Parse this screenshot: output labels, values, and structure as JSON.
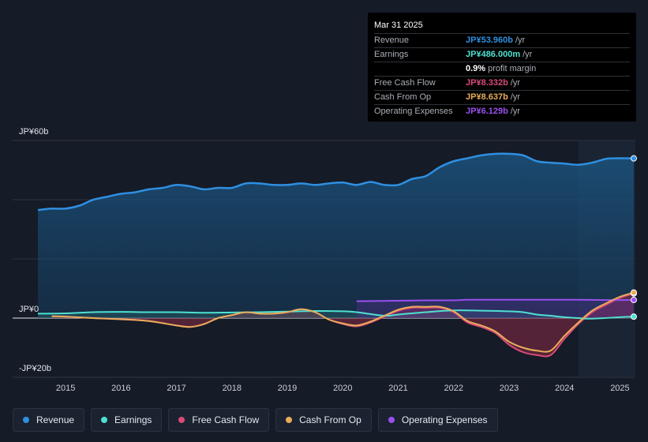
{
  "chart_data": {
    "type": "area",
    "y_labels": {
      "top": "JP¥60b",
      "zero": "JP¥0",
      "bottom": "-JP¥20b"
    },
    "ylim": [
      -20,
      60
    ],
    "xlim": [
      2014.5,
      2025.25
    ],
    "x_ticks": [
      "2015",
      "2016",
      "2017",
      "2018",
      "2019",
      "2020",
      "2021",
      "2022",
      "2023",
      "2024",
      "2025"
    ],
    "forecast_start": 2024.25,
    "series": [
      {
        "name": "Revenue",
        "color": "#2f8fe0",
        "fill": true,
        "points": [
          [
            2014.5,
            36.5
          ],
          [
            2014.75,
            37
          ],
          [
            2015,
            37
          ],
          [
            2015.25,
            38
          ],
          [
            2015.5,
            40
          ],
          [
            2015.75,
            41
          ],
          [
            2016,
            42
          ],
          [
            2016.25,
            42.5
          ],
          [
            2016.5,
            43.5
          ],
          [
            2016.75,
            44
          ],
          [
            2017,
            45
          ],
          [
            2017.25,
            44.5
          ],
          [
            2017.5,
            43.5
          ],
          [
            2017.75,
            44
          ],
          [
            2018,
            44
          ],
          [
            2018.25,
            45.5
          ],
          [
            2018.5,
            45.5
          ],
          [
            2018.75,
            45
          ],
          [
            2019,
            45
          ],
          [
            2019.25,
            45.5
          ],
          [
            2019.5,
            45
          ],
          [
            2019.75,
            45.5
          ],
          [
            2020,
            45.8
          ],
          [
            2020.25,
            45
          ],
          [
            2020.5,
            46
          ],
          [
            2020.75,
            45
          ],
          [
            2021,
            45
          ],
          [
            2021.25,
            47
          ],
          [
            2021.5,
            48
          ],
          [
            2021.75,
            51
          ],
          [
            2022,
            53
          ],
          [
            2022.25,
            54
          ],
          [
            2022.5,
            55
          ],
          [
            2022.75,
            55.5
          ],
          [
            2023,
            55.5
          ],
          [
            2023.25,
            55
          ],
          [
            2023.5,
            53
          ],
          [
            2023.75,
            52.5
          ],
          [
            2024,
            52.2
          ],
          [
            2024.25,
            51.8
          ],
          [
            2024.5,
            52.5
          ],
          [
            2024.75,
            53.8
          ],
          [
            2025,
            54
          ],
          [
            2025.25,
            53.96
          ]
        ]
      },
      {
        "name": "Earnings",
        "color": "#4fe0d0",
        "fill": true,
        "points": [
          [
            2014.5,
            1.5
          ],
          [
            2015,
            1.6
          ],
          [
            2015.5,
            2
          ],
          [
            2016,
            2.1
          ],
          [
            2016.5,
            2
          ],
          [
            2017,
            2
          ],
          [
            2017.5,
            1.8
          ],
          [
            2018,
            1.9
          ],
          [
            2018.5,
            2
          ],
          [
            2019,
            2.2
          ],
          [
            2019.5,
            2.4
          ],
          [
            2020,
            2.3
          ],
          [
            2020.25,
            2
          ],
          [
            2020.75,
            0.8
          ],
          [
            2021,
            1.2
          ],
          [
            2021.5,
            2
          ],
          [
            2022,
            2.6
          ],
          [
            2022.5,
            2.5
          ],
          [
            2023,
            2.3
          ],
          [
            2023.25,
            2
          ],
          [
            2023.5,
            1.2
          ],
          [
            2023.75,
            0.8
          ],
          [
            2024,
            0.3
          ],
          [
            2024.25,
            0
          ],
          [
            2024.5,
            -0.2
          ],
          [
            2025,
            0.3
          ],
          [
            2025.25,
            0.486
          ]
        ]
      },
      {
        "name": "Free Cash Flow",
        "color": "#d94a7a",
        "fill": true,
        "points": [
          [
            2014.75,
            0.6
          ],
          [
            2015,
            0.5
          ],
          [
            2015.5,
            0
          ],
          [
            2016,
            -0.4
          ],
          [
            2016.5,
            -1
          ],
          [
            2017,
            -2.5
          ],
          [
            2017.25,
            -3
          ],
          [
            2017.5,
            -2
          ],
          [
            2017.75,
            0
          ],
          [
            2018,
            1
          ],
          [
            2018.25,
            2
          ],
          [
            2018.5,
            1.5
          ],
          [
            2018.75,
            1.5
          ],
          [
            2019,
            2
          ],
          [
            2019.25,
            3
          ],
          [
            2019.5,
            2
          ],
          [
            2019.75,
            -0.5
          ],
          [
            2020,
            -2
          ],
          [
            2020.25,
            -2.8
          ],
          [
            2020.5,
            -1.5
          ],
          [
            2020.75,
            0.5
          ],
          [
            2021,
            2.5
          ],
          [
            2021.25,
            3.5
          ],
          [
            2021.5,
            3.5
          ],
          [
            2021.75,
            3.5
          ],
          [
            2022,
            2
          ],
          [
            2022.25,
            -1.5
          ],
          [
            2022.5,
            -3
          ],
          [
            2022.75,
            -5
          ],
          [
            2023,
            -9
          ],
          [
            2023.25,
            -11.5
          ],
          [
            2023.5,
            -12.5
          ],
          [
            2023.75,
            -12.5
          ],
          [
            2024,
            -7
          ],
          [
            2024.25,
            -2
          ],
          [
            2024.5,
            2
          ],
          [
            2024.75,
            4.5
          ],
          [
            2025,
            6.8
          ],
          [
            2025.25,
            8.332
          ]
        ]
      },
      {
        "name": "Cash From Op",
        "color": "#e8ad5a",
        "fill": false,
        "points": [
          [
            2014.75,
            0.6
          ],
          [
            2015,
            0.5
          ],
          [
            2015.5,
            0
          ],
          [
            2016,
            -0.4
          ],
          [
            2016.5,
            -1
          ],
          [
            2017,
            -2.5
          ],
          [
            2017.25,
            -3
          ],
          [
            2017.5,
            -2
          ],
          [
            2017.75,
            0
          ],
          [
            2018,
            1
          ],
          [
            2018.25,
            2
          ],
          [
            2018.5,
            1.5
          ],
          [
            2018.75,
            1.5
          ],
          [
            2019,
            2
          ],
          [
            2019.25,
            3
          ],
          [
            2019.5,
            2
          ],
          [
            2019.75,
            -0.5
          ],
          [
            2020,
            -1.8
          ],
          [
            2020.25,
            -2.5
          ],
          [
            2020.5,
            -1.2
          ],
          [
            2020.75,
            0.8
          ],
          [
            2021,
            2.8
          ],
          [
            2021.25,
            3.8
          ],
          [
            2021.5,
            3.8
          ],
          [
            2021.75,
            3.8
          ],
          [
            2022,
            2.3
          ],
          [
            2022.25,
            -1
          ],
          [
            2022.5,
            -2.5
          ],
          [
            2022.75,
            -4.5
          ],
          [
            2023,
            -8
          ],
          [
            2023.25,
            -10
          ],
          [
            2023.5,
            -11
          ],
          [
            2023.75,
            -11
          ],
          [
            2024,
            -6
          ],
          [
            2024.25,
            -1.5
          ],
          [
            2024.5,
            2.5
          ],
          [
            2024.75,
            5
          ],
          [
            2025,
            7.2
          ],
          [
            2025.25,
            8.637
          ]
        ]
      },
      {
        "name": "Operating Expenses",
        "color": "#9b4ff0",
        "fill": true,
        "points": [
          [
            2020.25,
            5.7
          ],
          [
            2020.75,
            5.8
          ],
          [
            2021.5,
            6
          ],
          [
            2022,
            6
          ],
          [
            2022.25,
            6.2
          ],
          [
            2022.75,
            6.2
          ],
          [
            2023.5,
            6.2
          ],
          [
            2024.25,
            6.2
          ],
          [
            2024.75,
            6.1
          ],
          [
            2025.25,
            6.129
          ]
        ]
      }
    ]
  },
  "tooltip": {
    "date": "Mar 31 2025",
    "rows": [
      {
        "label": "Revenue",
        "value": "JP¥53.960b",
        "unit": "/yr",
        "color": "#2f8fe0"
      },
      {
        "label": "Earnings",
        "value": "JP¥486.000m",
        "unit": "/yr",
        "color": "#4fe0d0"
      },
      {
        "label": "",
        "value": "0.9%",
        "unit": "profit margin",
        "color": "#ffffff"
      },
      {
        "label": "Free Cash Flow",
        "value": "JP¥8.332b",
        "unit": "/yr",
        "color": "#d94a7a"
      },
      {
        "label": "Cash From Op",
        "value": "JP¥8.637b",
        "unit": "/yr",
        "color": "#e8ad5a"
      },
      {
        "label": "Operating Expenses",
        "value": "JP¥6.129b",
        "unit": "/yr",
        "color": "#9b4ff0"
      }
    ]
  },
  "legend": [
    {
      "label": "Revenue",
      "color": "#2f8fe0"
    },
    {
      "label": "Earnings",
      "color": "#4fe0d0"
    },
    {
      "label": "Free Cash Flow",
      "color": "#d94a7a"
    },
    {
      "label": "Cash From Op",
      "color": "#e8ad5a"
    },
    {
      "label": "Operating Expenses",
      "color": "#9b4ff0"
    }
  ]
}
